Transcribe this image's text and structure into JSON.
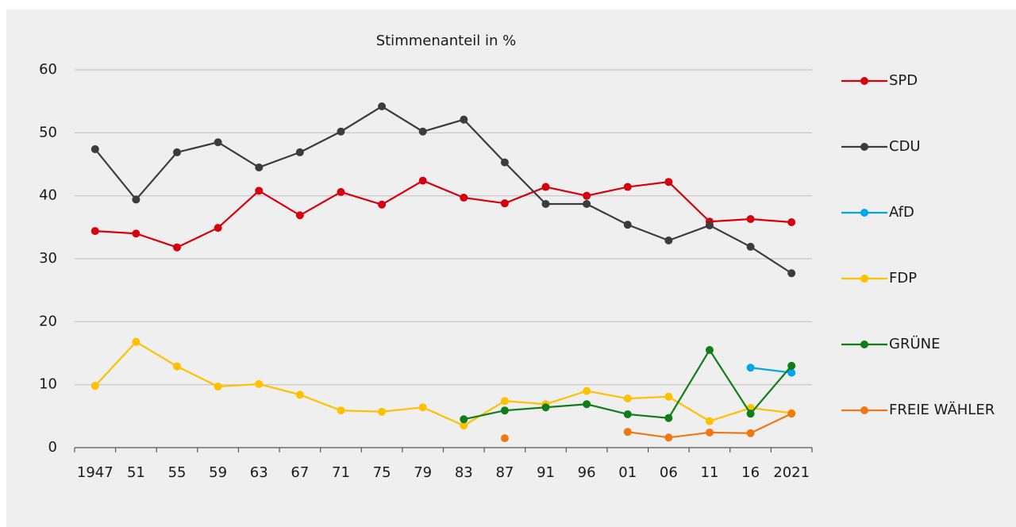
{
  "chart_data": {
    "type": "line",
    "title": "Stimmenanteil in %",
    "categories": [
      "1947",
      "51",
      "55",
      "59",
      "63",
      "67",
      "71",
      "75",
      "79",
      "83",
      "87",
      "91",
      "96",
      "01",
      "06",
      "11",
      "16",
      "2021"
    ],
    "series": [
      {
        "name": "SPD",
        "color": "#d7000f",
        "values": [
          34.4,
          34.0,
          31.8,
          34.9,
          40.8,
          36.9,
          40.6,
          38.6,
          42.4,
          39.7,
          38.8,
          41.4,
          40.0,
          41.4,
          42.2,
          35.9,
          36.3,
          35.8
        ]
      },
      {
        "name": "CDU",
        "color": "#3c3c3c",
        "values": [
          47.4,
          39.4,
          46.9,
          48.5,
          44.5,
          46.9,
          50.2,
          54.2,
          50.2,
          52.1,
          45.3,
          38.7,
          38.7,
          35.4,
          32.9,
          35.3,
          31.9,
          27.7
        ]
      },
      {
        "name": "AfD",
        "color": "#00a6eb",
        "values": [
          null,
          null,
          null,
          null,
          null,
          null,
          null,
          null,
          null,
          null,
          null,
          null,
          null,
          null,
          null,
          null,
          12.7,
          11.9
        ]
      },
      {
        "name": "FDP",
        "color": "#ffc000",
        "values": [
          9.8,
          16.8,
          12.9,
          9.7,
          10.1,
          8.4,
          5.9,
          5.7,
          6.4,
          3.5,
          7.4,
          6.9,
          9.0,
          7.8,
          8.1,
          4.2,
          6.3,
          5.5
        ]
      },
      {
        "name": "GRÜNE",
        "color": "#0f7d18",
        "values": [
          null,
          null,
          null,
          null,
          null,
          null,
          null,
          null,
          null,
          4.5,
          5.9,
          6.4,
          6.9,
          5.3,
          4.7,
          15.5,
          5.4,
          13.0
        ]
      },
      {
        "name": "FREIE WÄHLER",
        "color": "#f07814",
        "values": [
          null,
          null,
          null,
          null,
          null,
          null,
          null,
          null,
          null,
          null,
          1.5,
          null,
          null,
          2.5,
          1.6,
          2.4,
          2.3,
          5.4
        ]
      }
    ],
    "ylim": [
      0,
      60
    ],
    "yticks": [
      0,
      10,
      20,
      30,
      40,
      50,
      60
    ],
    "grid": true,
    "legend": "right"
  }
}
